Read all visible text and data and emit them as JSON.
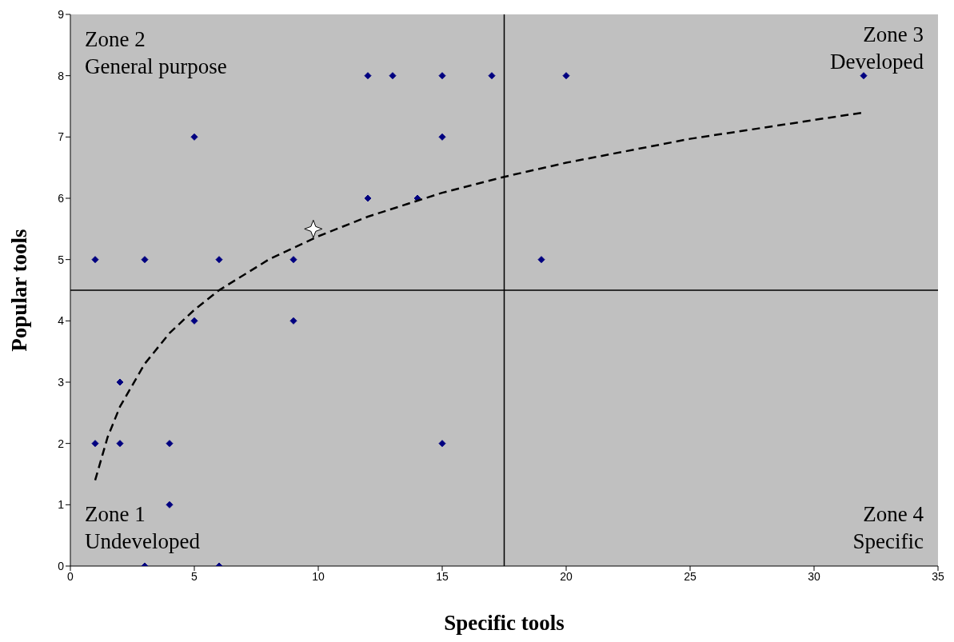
{
  "chart_data": {
    "type": "scatter",
    "xlabel": "Specific tools",
    "ylabel": "Popular tools",
    "xlim": [
      0,
      35
    ],
    "xticks": [
      0,
      5,
      10,
      15,
      20,
      25,
      30,
      35
    ],
    "ylim": [
      0,
      9
    ],
    "yticks": [
      0,
      1,
      2,
      3,
      4,
      5,
      6,
      7,
      8,
      9
    ],
    "grid": false,
    "legend": false,
    "annotations": [
      "Zone 2\nGeneral purpose",
      "Zone 3\nDeveloped",
      "Zone 1\nUndeveloped",
      "Zone 4\nSpecific"
    ],
    "ref_lines": [
      {
        "axis": "x",
        "value": 17.5,
        "color": "#000000"
      },
      {
        "axis": "y",
        "value": 4.5,
        "color": "#000000"
      }
    ],
    "series": [
      {
        "marker": "diamond",
        "color": "#000080",
        "x": [
          12,
          13,
          15,
          17,
          20,
          32,
          5,
          15,
          12,
          14,
          1,
          3,
          6,
          9,
          19,
          5,
          9,
          2,
          1,
          2,
          4,
          15,
          4,
          3,
          6
        ],
        "values": [
          8,
          8,
          8,
          8,
          8,
          8,
          7,
          7,
          6,
          6,
          5,
          5,
          5,
          5,
          5,
          4,
          4,
          3,
          2,
          2,
          2,
          2,
          1,
          0,
          0
        ]
      },
      {
        "marker": "star",
        "color": "#ffffff",
        "x": [
          9.8
        ],
        "values": [
          5.5
        ]
      },
      {
        "type": "line",
        "marker": "none",
        "line_style": "dashed",
        "color": "#000000",
        "x": [
          1,
          1.5,
          2,
          3,
          4,
          5,
          6,
          8,
          10,
          12,
          15,
          17.5,
          20,
          25,
          32
        ],
        "values": [
          1.4,
          2.1,
          2.6,
          3.3,
          3.8,
          4.18,
          4.5,
          5.0,
          5.38,
          5.7,
          6.09,
          6.35,
          6.58,
          6.97,
          7.4
        ]
      }
    ]
  }
}
